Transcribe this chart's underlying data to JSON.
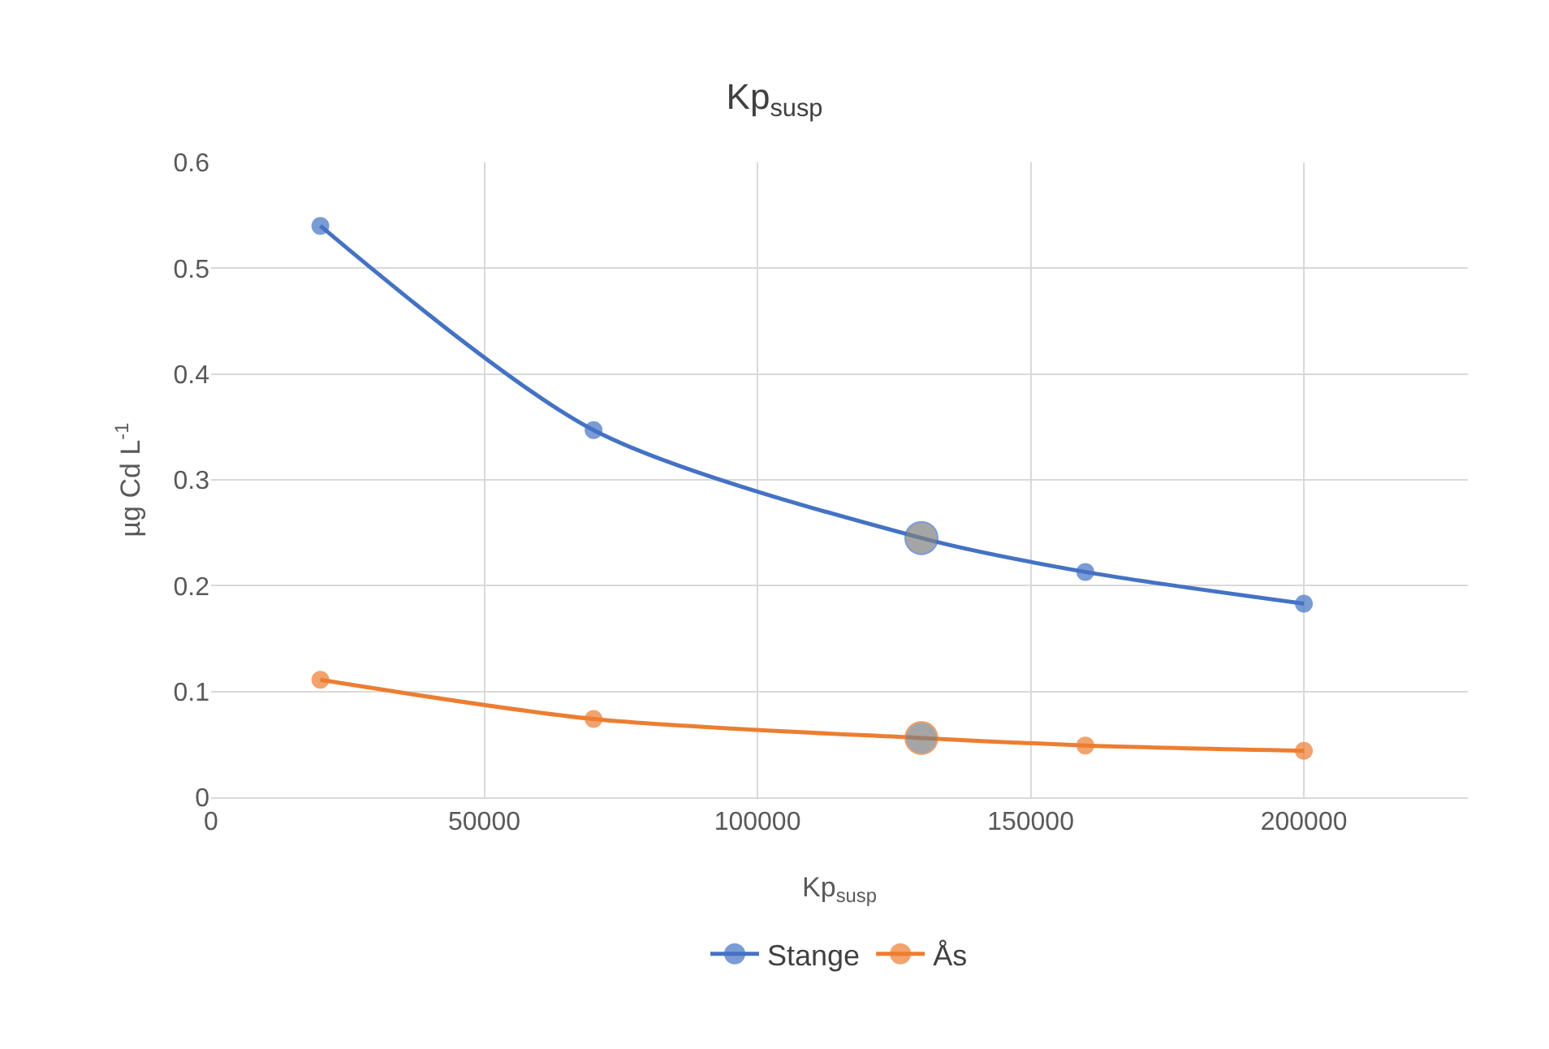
{
  "chart_data": {
    "type": "line",
    "title": "Kp$_{susp}$",
    "xlabel": "Kp$_{susp}$",
    "ylabel": "µg Cd L$^{-1}$",
    "x": [
      20000,
      70000,
      130000,
      160000,
      200000
    ],
    "series": [
      {
        "name": "Stange",
        "color": "#4472c4",
        "colors": [
          "#4472c4",
          "#4472c4",
          "#7f7f7f",
          "#4472c4",
          "#4472c4"
        ],
        "values": [
          0.54,
          0.347,
          0.245,
          0.213,
          0.183
        ]
      },
      {
        "name": "Ås",
        "color": "#ed7d31",
        "colors": [
          "#ed7d31",
          "#ed7d31",
          "#7f7f7f",
          "#ed7d31",
          "#ed7d31"
        ],
        "values": [
          0.111,
          0.074,
          0.056,
          0.049,
          0.044
        ]
      }
    ],
    "xlim": [
      0,
      230000
    ],
    "xticks": [
      0,
      50000,
      100000,
      150000,
      200000
    ],
    "ylim": [
      0,
      0.6
    ],
    "yticks": [
      0,
      0.1,
      0.2,
      0.3,
      0.4,
      0.5,
      0.6
    ],
    "grid": true,
    "legend": "bottom",
    "marker": "circle",
    "line_style": "solid"
  }
}
